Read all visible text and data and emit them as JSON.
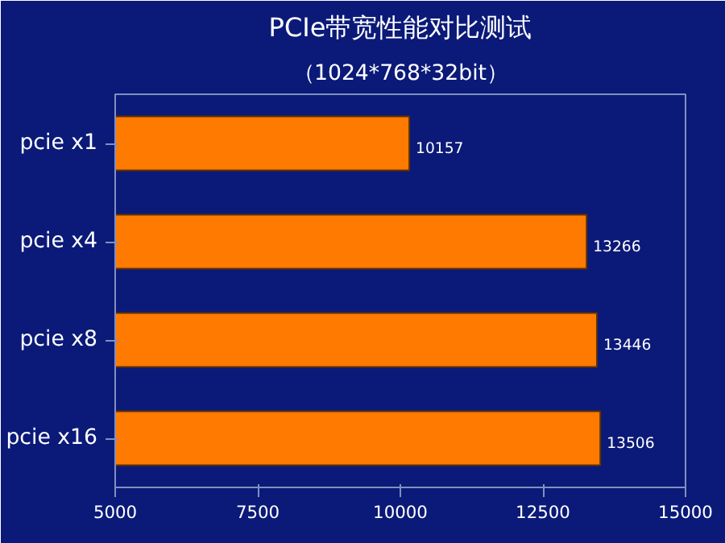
{
  "chart_data": {
    "type": "bar",
    "orientation": "horizontal",
    "title": "PCIe带宽性能对比测试",
    "subtitle": "（1024*768*32bit）",
    "categories": [
      "pcie x1",
      "pcie x4",
      "pcie x8",
      "pcie x16"
    ],
    "series": [
      {
        "color": "#ff7a00",
        "values": [
          10157,
          13266,
          13446,
          13506
        ]
      }
    ],
    "xlim": [
      5000,
      15000
    ],
    "xticks": [
      5000,
      7500,
      10000,
      12500,
      15000
    ],
    "data_labels": true
  }
}
